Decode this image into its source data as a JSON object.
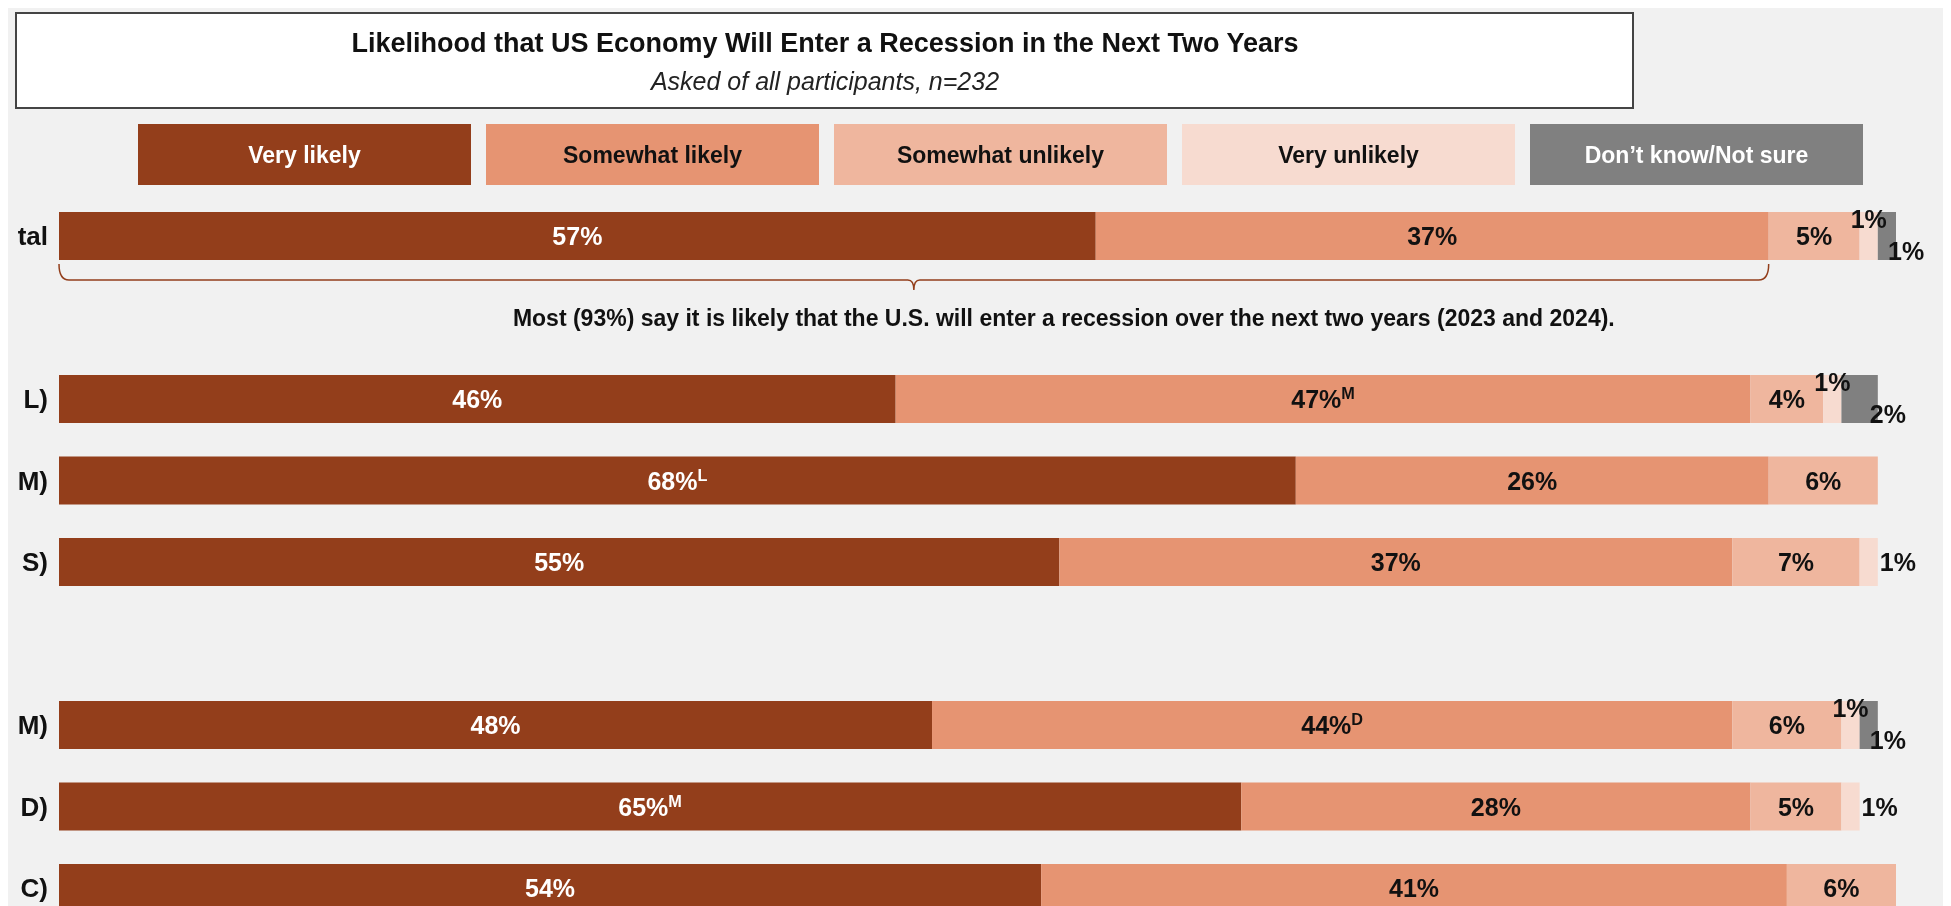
{
  "chart_data": {
    "type": "bar",
    "orientation": "horizontal",
    "stacked": true,
    "title": "Likelihood that US Economy Will Enter a Recession in the Next Two Years",
    "subtitle": "Asked of all participants, n=232",
    "categories": [
      "tal",
      null,
      "L)",
      "M)",
      "S)",
      null,
      "M)",
      "D)",
      "C)"
    ],
    "series": [
      {
        "name": "Very likely",
        "color": "#933e1b",
        "values": [
          57,
          null,
          46,
          68,
          55,
          null,
          48,
          65,
          54
        ],
        "value_labels": [
          "57%",
          null,
          "46%",
          "68%$^{L}$",
          "55%",
          null,
          "48%",
          "65%$^{M}$",
          "54%"
        ]
      },
      {
        "name": "Somewhat likely",
        "color": "#e69472",
        "values": [
          37,
          null,
          47,
          26,
          37,
          null,
          44,
          28,
          41
        ],
        "value_labels": [
          "37%",
          null,
          "47%$^{M}$",
          "26%",
          "37%",
          null,
          "44%$^{D}$",
          "28%",
          "41%"
        ]
      },
      {
        "name": "Somewhat unlikely",
        "color": "#efb69e",
        "values": [
          5,
          null,
          4,
          6,
          7,
          null,
          6,
          5,
          6
        ],
        "value_labels": [
          "5%",
          null,
          "4%",
          "6%",
          "7%",
          null,
          "6%",
          "5%",
          "6%"
        ]
      },
      {
        "name": "Very unlikely",
        "color": "#f7dbd0",
        "values": [
          1,
          null,
          1,
          null,
          1,
          null,
          1,
          1,
          null
        ],
        "value_labels": [
          "1%",
          null,
          "1%",
          null,
          "1%",
          null,
          "1%",
          "1%",
          null
        ]
      },
      {
        "name": "Don’t know/Not sure",
        "color": "#808080",
        "values": [
          1,
          null,
          2,
          null,
          null,
          null,
          1,
          null,
          null
        ],
        "value_labels": [
          "1%",
          null,
          "2%",
          null,
          null,
          null,
          "1%",
          null,
          null
        ]
      }
    ],
    "legend": "top",
    "annotations": [
      "Most (93%) say it is likely that the U.S. will  enter a recession over the next two years (2023 and 2024)."
    ]
  }
}
